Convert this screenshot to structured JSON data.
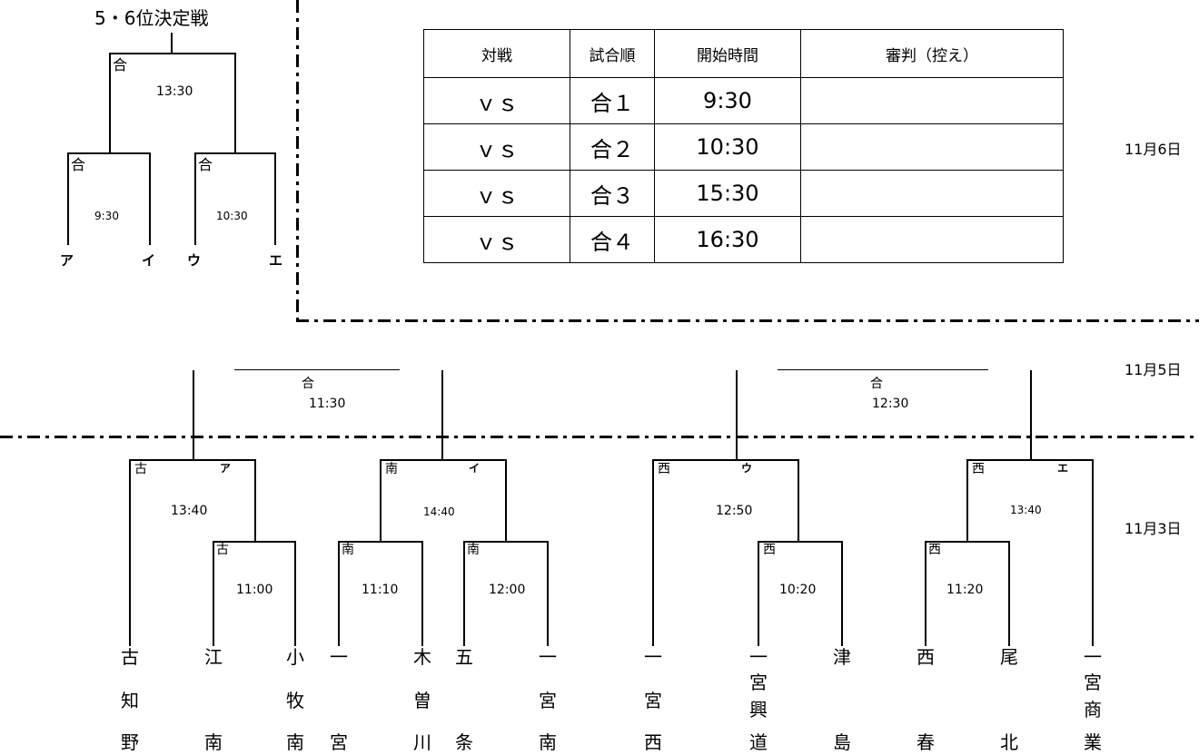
{
  "title": "5・6位決定戦",
  "dates": {
    "d1": "11月6日",
    "d2": "11月5日",
    "d3": "11月3日"
  },
  "schedule": {
    "headers": [
      "対戦",
      "試合順",
      "開始時間",
      "審判（控え）"
    ],
    "rows": [
      {
        "match": "ｖｓ",
        "order": "合１",
        "time": "9:30",
        "referee": ""
      },
      {
        "match": "ｖｓ",
        "order": "合２",
        "time": "10:30",
        "referee": ""
      },
      {
        "match": "ｖｓ",
        "order": "合３",
        "time": "15:30",
        "referee": ""
      },
      {
        "match": "ｖｓ",
        "order": "合４",
        "time": "16:30",
        "referee": ""
      }
    ]
  },
  "mini_bracket": {
    "top_label": "合",
    "top_time": "13:30",
    "left_label": "合",
    "left_time": "9:30",
    "right_label": "合",
    "right_time": "10:30",
    "slots": [
      "ア",
      "イ",
      "ウ",
      "エ"
    ]
  },
  "semis": [
    {
      "label": "合",
      "time": "11:30"
    },
    {
      "label": "合",
      "time": "12:30"
    }
  ],
  "day1": {
    "matches": [
      {
        "label": "古",
        "slot": "ア",
        "time": "13:40"
      },
      {
        "label": "古",
        "time": "11:00"
      },
      {
        "label": "南",
        "slot": "イ",
        "time": "14:40"
      },
      {
        "label": "南",
        "time": "11:10"
      },
      {
        "label": "南",
        "time": "12:00"
      },
      {
        "label": "西",
        "slot": "ウ",
        "time": "12:50"
      },
      {
        "label": "西",
        "time": "10:20"
      },
      {
        "label": "西",
        "slot": "エ",
        "time": "13:40"
      },
      {
        "label": "西",
        "time": "11:20"
      }
    ]
  },
  "teams": [
    {
      "name": [
        "古",
        "知",
        "野"
      ]
    },
    {
      "name": [
        "江",
        "",
        "南"
      ]
    },
    {
      "name": [
        "小",
        "牧",
        "南"
      ]
    },
    {
      "name": [
        "一",
        "",
        "宮"
      ]
    },
    {
      "name": [
        "木",
        "曽",
        "川"
      ]
    },
    {
      "name": [
        "五",
        "",
        "条"
      ]
    },
    {
      "name": [
        "一",
        "宮",
        "南"
      ]
    },
    {
      "name": [
        "一",
        "宮",
        "西"
      ]
    },
    {
      "name": [
        "一",
        "宮",
        "興",
        "道"
      ]
    },
    {
      "name": [
        "津",
        "",
        "島"
      ]
    },
    {
      "name": [
        "西",
        "",
        "春"
      ]
    },
    {
      "name": [
        "尾",
        "",
        "北"
      ]
    },
    {
      "name": [
        "一",
        "宮",
        "商",
        "業"
      ]
    }
  ]
}
